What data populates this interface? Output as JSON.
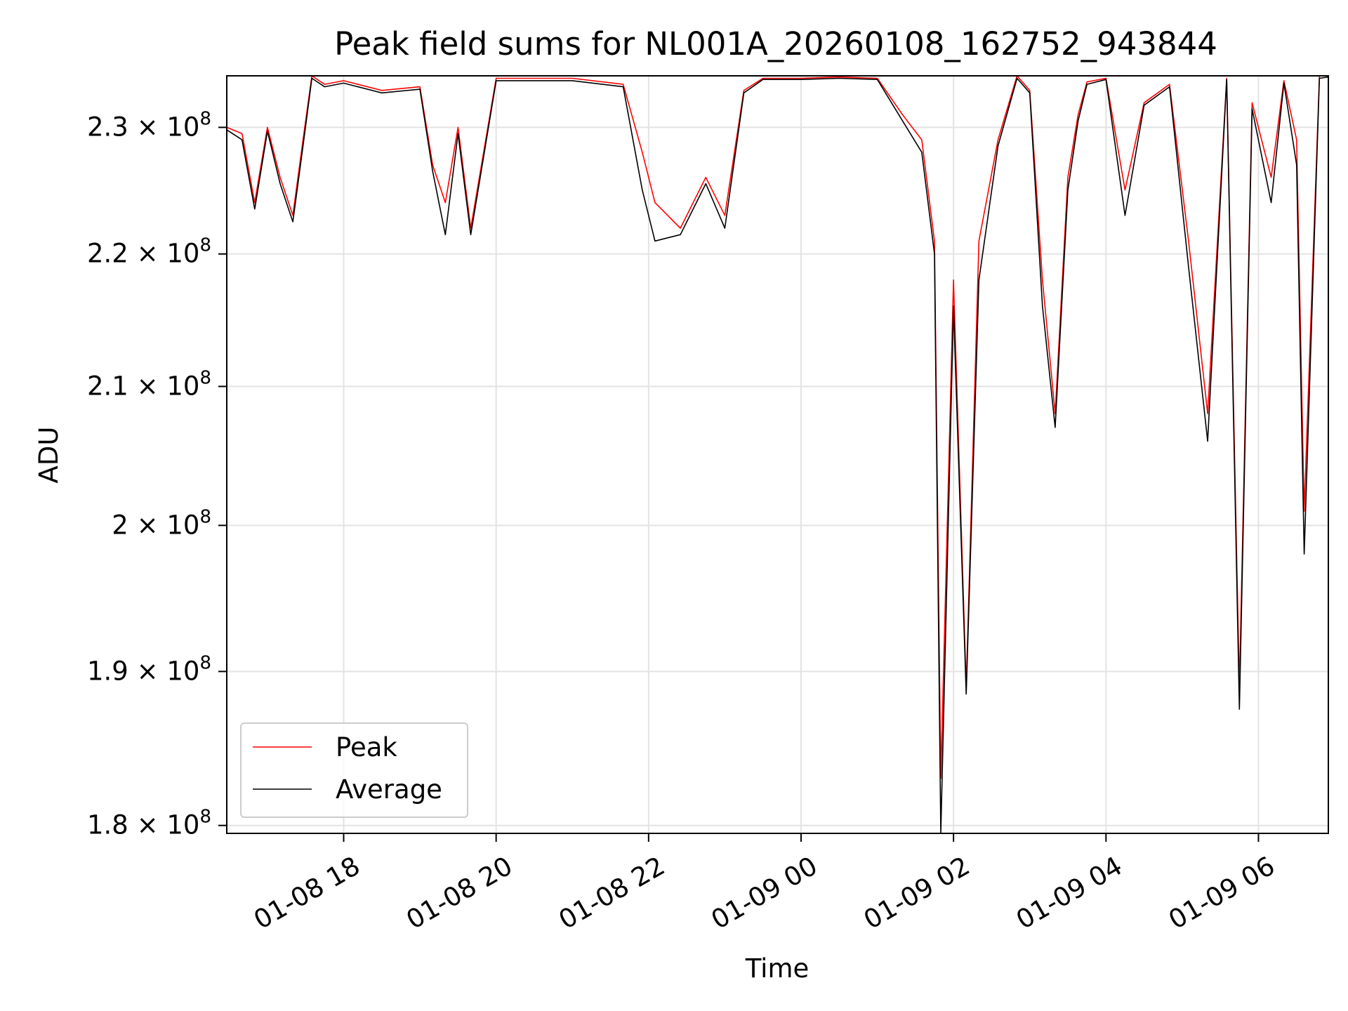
{
  "chart_data": {
    "type": "line",
    "title": "Peak field sums for NL001A_20260108_162752_943844",
    "xlabel": "Time",
    "ylabel": "ADU",
    "y_scale": "log",
    "grid": true,
    "legend_placement": "lower-left",
    "xlim": [
      "2026-01-08 16:28",
      "2026-01-09 06:55"
    ],
    "ylim": [
      179500000,
      234200000
    ],
    "x_ticks": [
      {
        "at": "2026-01-08 18:00",
        "label": "01-08 18"
      },
      {
        "at": "2026-01-08 20:00",
        "label": "01-08 20"
      },
      {
        "at": "2026-01-08 22:00",
        "label": "01-08 22"
      },
      {
        "at": "2026-01-09 00:00",
        "label": "01-09 00"
      },
      {
        "at": "2026-01-09 02:00",
        "label": "01-09 02"
      },
      {
        "at": "2026-01-09 04:00",
        "label": "01-09 04"
      },
      {
        "at": "2026-01-09 06:00",
        "label": "01-09 06"
      }
    ],
    "y_ticks": [
      {
        "value": 180000000,
        "mantissa": "1.8",
        "exponent": "8"
      },
      {
        "value": 190000000,
        "mantissa": "1.9",
        "exponent": "8"
      },
      {
        "value": 200000000,
        "mantissa": "2",
        "exponent": "8"
      },
      {
        "value": 210000000,
        "mantissa": "2.1",
        "exponent": "8"
      },
      {
        "value": 220000000,
        "mantissa": "2.2",
        "exponent": "8"
      },
      {
        "value": 230000000,
        "mantissa": "2.3",
        "exponent": "8"
      }
    ],
    "series": [
      {
        "name": "Peak",
        "color": "#ff0000",
        "x": [
          "2026-01-08 16:28",
          "2026-01-08 16:40",
          "2026-01-08 16:50",
          "2026-01-08 17:00",
          "2026-01-08 17:10",
          "2026-01-08 17:20",
          "2026-01-08 17:28",
          "2026-01-08 17:35",
          "2026-01-08 17:45",
          "2026-01-08 18:00",
          "2026-01-08 18:30",
          "2026-01-08 19:00",
          "2026-01-08 19:10",
          "2026-01-08 19:20",
          "2026-01-08 19:30",
          "2026-01-08 19:40",
          "2026-01-08 20:00",
          "2026-01-08 21:00",
          "2026-01-08 21:40",
          "2026-01-08 21:55",
          "2026-01-08 22:05",
          "2026-01-08 22:25",
          "2026-01-08 22:45",
          "2026-01-08 23:00",
          "2026-01-08 23:15",
          "2026-01-08 23:30",
          "2026-01-09 00:00",
          "2026-01-09 00:30",
          "2026-01-09 01:00",
          "2026-01-09 01:20",
          "2026-01-09 01:35",
          "2026-01-09 01:45",
          "2026-01-09 01:50",
          "2026-01-09 02:00",
          "2026-01-09 02:10",
          "2026-01-09 02:20",
          "2026-01-09 02:35",
          "2026-01-09 02:50",
          "2026-01-09 03:00",
          "2026-01-09 03:10",
          "2026-01-09 03:20",
          "2026-01-09 03:30",
          "2026-01-09 03:38",
          "2026-01-09 03:45",
          "2026-01-09 04:00",
          "2026-01-09 04:15",
          "2026-01-09 04:30",
          "2026-01-09 04:50",
          "2026-01-09 05:05",
          "2026-01-09 05:20",
          "2026-01-09 05:35",
          "2026-01-09 05:45",
          "2026-01-09 05:55",
          "2026-01-09 06:10",
          "2026-01-09 06:20",
          "2026-01-09 06:30",
          "2026-01-09 06:36",
          "2026-01-09 06:48",
          "2026-01-09 06:55"
        ],
        "values": [
          230000000,
          229500000,
          224000000,
          230000000,
          226000000,
          223000000,
          229000000,
          234200000,
          233500000,
          233800000,
          233000000,
          233300000,
          227000000,
          224000000,
          230000000,
          222000000,
          234000000,
          234000000,
          233500000,
          228000000,
          224000000,
          222000000,
          226000000,
          223000000,
          233000000,
          234000000,
          234000000,
          234100000,
          234000000,
          231000000,
          229000000,
          221000000,
          183000000,
          218000000,
          189000000,
          221000000,
          229000000,
          234200000,
          233000000,
          218000000,
          208000000,
          226000000,
          231000000,
          233700000,
          234000000,
          225000000,
          232000000,
          233500000,
          221000000,
          208000000,
          234000000,
          189000000,
          232000000,
          226000000,
          233800000,
          229000000,
          201000000,
          234200000,
          234200000
        ]
      },
      {
        "name": "Average",
        "color": "#000000",
        "x": [
          "2026-01-08 16:28",
          "2026-01-08 16:40",
          "2026-01-08 16:50",
          "2026-01-08 17:00",
          "2026-01-08 17:10",
          "2026-01-08 17:20",
          "2026-01-08 17:28",
          "2026-01-08 17:35",
          "2026-01-08 17:45",
          "2026-01-08 18:00",
          "2026-01-08 18:30",
          "2026-01-08 19:00",
          "2026-01-08 19:10",
          "2026-01-08 19:20",
          "2026-01-08 19:30",
          "2026-01-08 19:40",
          "2026-01-08 20:00",
          "2026-01-08 21:00",
          "2026-01-08 21:40",
          "2026-01-08 21:55",
          "2026-01-08 22:05",
          "2026-01-08 22:25",
          "2026-01-08 22:45",
          "2026-01-08 23:00",
          "2026-01-08 23:15",
          "2026-01-08 23:30",
          "2026-01-09 00:00",
          "2026-01-09 00:30",
          "2026-01-09 01:00",
          "2026-01-09 01:20",
          "2026-01-09 01:35",
          "2026-01-09 01:45",
          "2026-01-09 01:50",
          "2026-01-09 02:00",
          "2026-01-09 02:10",
          "2026-01-09 02:20",
          "2026-01-09 02:35",
          "2026-01-09 02:50",
          "2026-01-09 03:00",
          "2026-01-09 03:10",
          "2026-01-09 03:20",
          "2026-01-09 03:30",
          "2026-01-09 03:38",
          "2026-01-09 03:45",
          "2026-01-09 04:00",
          "2026-01-09 04:15",
          "2026-01-09 04:30",
          "2026-01-09 04:50",
          "2026-01-09 05:05",
          "2026-01-09 05:20",
          "2026-01-09 05:35",
          "2026-01-09 05:45",
          "2026-01-09 05:55",
          "2026-01-09 06:10",
          "2026-01-09 06:20",
          "2026-01-09 06:30",
          "2026-01-09 06:36",
          "2026-01-09 06:48",
          "2026-01-09 06:55"
        ],
        "values": [
          229800000,
          229000000,
          223500000,
          229700000,
          225500000,
          222500000,
          228500000,
          234000000,
          233300000,
          233600000,
          232800000,
          233100000,
          226500000,
          221500000,
          229500000,
          221500000,
          233800000,
          233800000,
          233300000,
          225000000,
          221000000,
          221500000,
          225500000,
          222000000,
          232800000,
          233900000,
          233900000,
          234000000,
          233900000,
          230500000,
          228000000,
          220000000,
          179500000,
          216000000,
          188500000,
          218000000,
          228500000,
          234000000,
          232800000,
          216000000,
          207000000,
          225000000,
          230500000,
          233500000,
          233900000,
          223000000,
          231800000,
          233300000,
          219000000,
          206000000,
          233900000,
          187500000,
          231500000,
          224000000,
          233600000,
          227000000,
          198000000,
          234000000,
          234100000
        ]
      }
    ]
  }
}
